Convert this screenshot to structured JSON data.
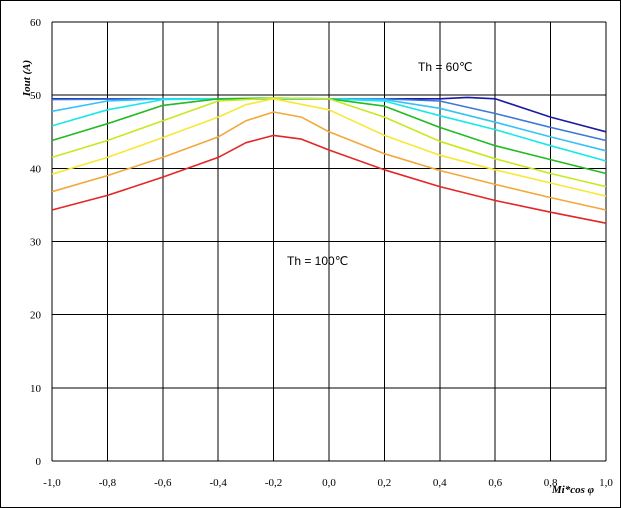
{
  "chart_data": {
    "type": "line",
    "title": "",
    "xlabel": "Mi*cos φ",
    "ylabel": "Iout (A)",
    "xlim": [
      -1.0,
      1.0
    ],
    "ylim": [
      0,
      60
    ],
    "grid": true,
    "x_ticks": [
      "-1,0",
      "-0,8",
      "-0,6",
      "-0,4",
      "-0,2",
      "0,0",
      "0,2",
      "0,4",
      "0,6",
      "0,8",
      "1,0"
    ],
    "y_ticks": [
      "0",
      "10",
      "20",
      "30",
      "40",
      "50",
      "60"
    ],
    "annotations": [
      "Th = 60℃",
      "Th = 100℃"
    ],
    "series": [
      {
        "color": "#1a1aa6",
        "x": [
          -1.0,
          -0.6,
          -0.2,
          0.2,
          0.4,
          0.5,
          0.6,
          0.8,
          1.0
        ],
        "y": [
          49.5,
          49.5,
          49.5,
          49.5,
          49.5,
          49.7,
          49.5,
          47.0,
          45.0
        ]
      },
      {
        "color": "#3c78d8",
        "x": [
          -1.0,
          -0.6,
          -0.2,
          0.2,
          0.4,
          0.6,
          0.8,
          1.0
        ],
        "y": [
          49.4,
          49.5,
          49.5,
          49.5,
          49.2,
          47.5,
          45.6,
          43.8
        ]
      },
      {
        "color": "#35c3f5",
        "x": [
          -1.0,
          -0.8,
          -0.6,
          -0.4,
          -0.2,
          0.0,
          0.2,
          0.4,
          0.6,
          0.8,
          1.0
        ],
        "y": [
          47.8,
          49.2,
          49.5,
          49.5,
          49.5,
          49.5,
          49.4,
          48.2,
          46.3,
          44.3,
          42.4
        ]
      },
      {
        "color": "#19e8e8",
        "x": [
          -1.0,
          -0.8,
          -0.6,
          -0.4,
          -0.2,
          0.0,
          0.2,
          0.4,
          0.6,
          0.8,
          1.0
        ],
        "y": [
          45.8,
          48.0,
          49.4,
          49.5,
          49.5,
          49.5,
          49.2,
          47.2,
          45.3,
          43.1,
          41.0
        ]
      },
      {
        "color": "#22bb22",
        "x": [
          -1.0,
          -0.8,
          -0.6,
          -0.4,
          -0.2,
          0.0,
          0.2,
          0.4,
          0.6,
          0.8,
          1.0
        ],
        "y": [
          43.8,
          46.1,
          48.6,
          49.5,
          49.6,
          49.5,
          48.5,
          45.6,
          43.1,
          41.2,
          39.3
        ]
      },
      {
        "color": "#c8e81e",
        "x": [
          -1.0,
          -0.8,
          -0.6,
          -0.4,
          -0.2,
          0.0,
          0.2,
          0.4,
          0.6,
          0.8,
          1.0
        ],
        "y": [
          41.5,
          43.8,
          46.5,
          49.2,
          49.6,
          49.5,
          47.0,
          43.7,
          41.3,
          39.3,
          37.5
        ]
      },
      {
        "color": "#f7e836",
        "x": [
          -1.0,
          -0.8,
          -0.6,
          -0.4,
          -0.3,
          -0.2,
          0.0,
          0.2,
          0.4,
          0.6,
          0.8,
          1.0
        ],
        "y": [
          39.2,
          41.5,
          44.2,
          47.0,
          48.7,
          49.5,
          48.0,
          44.5,
          41.8,
          39.8,
          38.0,
          36.2
        ]
      },
      {
        "color": "#f2a83a",
        "x": [
          -1.0,
          -0.8,
          -0.6,
          -0.4,
          -0.3,
          -0.2,
          -0.1,
          0.0,
          0.2,
          0.4,
          0.6,
          0.8,
          1.0
        ],
        "y": [
          36.8,
          39.0,
          41.5,
          44.3,
          46.5,
          47.7,
          47.0,
          45.0,
          42.0,
          39.7,
          37.8,
          36.0,
          34.3
        ]
      },
      {
        "color": "#e32626",
        "x": [
          -1.0,
          -0.8,
          -0.6,
          -0.4,
          -0.3,
          -0.2,
          -0.1,
          0.0,
          0.2,
          0.4,
          0.6,
          0.8,
          1.0
        ],
        "y": [
          34.3,
          36.3,
          38.8,
          41.5,
          43.5,
          44.5,
          44.0,
          42.5,
          39.8,
          37.5,
          35.6,
          34.0,
          32.5
        ]
      }
    ]
  }
}
